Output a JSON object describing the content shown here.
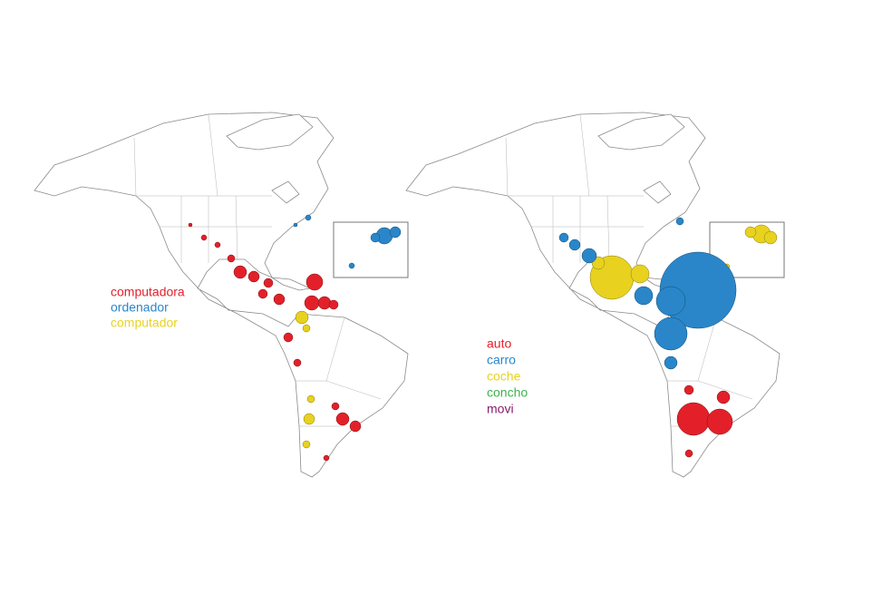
{
  "maps": [
    {
      "legend": [
        {
          "label": "computadora",
          "color": "#e3202a"
        },
        {
          "label": "ordenador",
          "color": "#2a86c8"
        },
        {
          "label": "computador",
          "color": "#e8d21f"
        }
      ]
    },
    {
      "legend": [
        {
          "label": "auto",
          "color": "#e3202a"
        },
        {
          "label": "carro",
          "color": "#2a86c8"
        },
        {
          "label": "coche",
          "color": "#e8d21f"
        },
        {
          "label": "concho",
          "color": "#3cb44a"
        },
        {
          "label": "movi",
          "color": "#8b1a6b"
        }
      ]
    }
  ]
}
